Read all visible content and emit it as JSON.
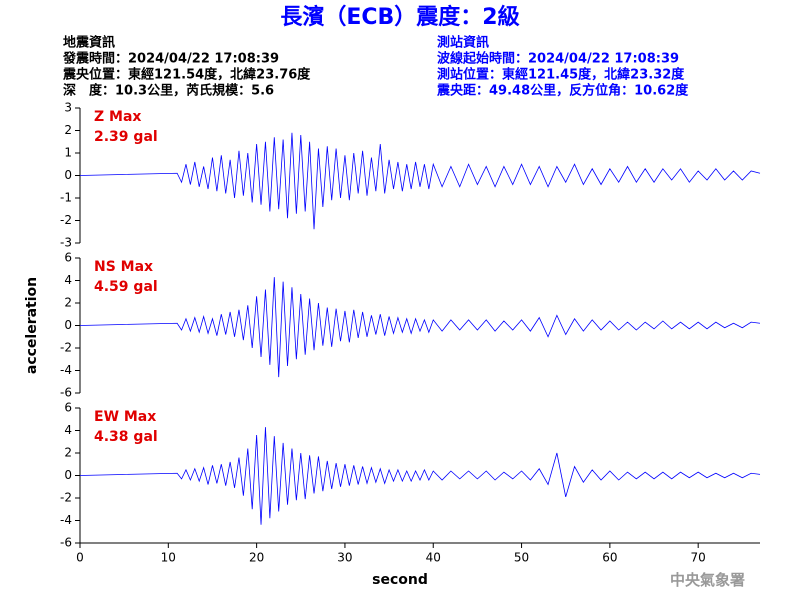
{
  "header": {
    "title": "長濱（ECB）震度：2級",
    "left": [
      "地震資訊",
      "發震時間：2024/04/22 17:08:39",
      "震央位置：東經121.54度，北緯23.76度",
      "深　度：10.3公里，芮氏規模：5.6"
    ],
    "right": [
      "測站資訊",
      "波線起始時間：2024/04/22 17:08:39",
      "測站位置：東經121.45度，北緯23.32度",
      "震央距：49.48公里，反方位角：10.62度"
    ]
  },
  "footer": {
    "agency": "中央氣象署"
  },
  "chart_data": [
    {
      "type": "line",
      "annotations": [
        "Z Max",
        "2.39 gal"
      ],
      "xlim": [
        0,
        77
      ],
      "ylim": [
        -3,
        3
      ],
      "yticks": [
        -3,
        -2,
        -1,
        0,
        1,
        2,
        3
      ],
      "x": [
        0,
        11,
        11.5,
        12,
        12.5,
        13,
        13.5,
        14,
        14.5,
        15,
        15.5,
        16,
        16.5,
        17,
        17.5,
        18,
        18.5,
        19,
        19.5,
        20,
        20.5,
        21,
        21.5,
        22,
        22.5,
        23,
        23.5,
        24,
        24.5,
        25,
        25.5,
        26,
        26.5,
        27,
        27.5,
        28,
        28.5,
        29,
        29.5,
        30,
        30.5,
        31,
        31.5,
        32,
        32.5,
        33,
        33.5,
        34,
        34.5,
        35,
        35.5,
        36,
        36.5,
        37,
        37.5,
        38,
        38.5,
        39,
        39.5,
        40,
        41,
        42,
        43,
        44,
        45,
        46,
        47,
        48,
        49,
        50,
        51,
        52,
        53,
        54,
        55,
        56,
        57,
        58,
        59,
        60,
        61,
        62,
        63,
        64,
        65,
        66,
        67,
        68,
        69,
        70,
        71,
        72,
        73,
        74,
        75,
        76,
        77
      ],
      "series": [
        {
          "color": "#0000ff",
          "values": [
            0,
            0.1,
            -0.3,
            0.5,
            -0.4,
            0.6,
            -0.5,
            0.4,
            -0.6,
            0.8,
            -0.7,
            0.9,
            -0.8,
            0.7,
            -1.0,
            1.1,
            -0.9,
            1.0,
            -1.2,
            1.4,
            -1.3,
            1.5,
            -1.6,
            1.7,
            -1.5,
            1.6,
            -1.9,
            1.9,
            -1.7,
            1.8,
            -1.6,
            1.5,
            -2.39,
            1.2,
            -1.4,
            1.3,
            -1.1,
            1.2,
            -1.0,
            0.9,
            -1.1,
            1.0,
            -0.8,
            1.1,
            -0.9,
            0.8,
            -0.7,
            1.4,
            -0.8,
            0.7,
            -0.6,
            0.6,
            -0.7,
            0.5,
            -0.6,
            0.6,
            -0.5,
            0.5,
            -0.6,
            0.5,
            -0.5,
            0.4,
            -0.5,
            0.5,
            -0.4,
            0.4,
            -0.5,
            0.4,
            -0.4,
            0.5,
            -0.4,
            0.4,
            -0.5,
            0.4,
            -0.3,
            0.5,
            -0.4,
            0.3,
            -0.4,
            0.3,
            -0.3,
            0.4,
            -0.3,
            0.3,
            -0.3,
            0.3,
            -0.2,
            0.3,
            -0.3,
            0.2,
            -0.2,
            0.3,
            -0.2,
            0.2,
            -0.2,
            0.2,
            0.1
          ]
        }
      ]
    },
    {
      "type": "line",
      "annotations": [
        "NS Max",
        "4.59 gal"
      ],
      "ylabel": "acceleration",
      "xlim": [
        0,
        77
      ],
      "ylim": [
        -6,
        6
      ],
      "yticks": [
        -6,
        -4,
        -2,
        0,
        2,
        4,
        6
      ],
      "x": [
        0,
        11,
        11.5,
        12,
        12.5,
        13,
        13.5,
        14,
        14.5,
        15,
        15.5,
        16,
        16.5,
        17,
        17.5,
        18,
        18.5,
        19,
        19.5,
        20,
        20.5,
        21,
        21.5,
        22,
        22.5,
        23,
        23.5,
        24,
        24.5,
        25,
        25.5,
        26,
        26.5,
        27,
        27.5,
        28,
        28.5,
        29,
        29.5,
        30,
        30.5,
        31,
        31.5,
        32,
        32.5,
        33,
        33.5,
        34,
        34.5,
        35,
        35.5,
        36,
        36.5,
        37,
        37.5,
        38,
        38.5,
        39,
        39.5,
        40,
        41,
        42,
        43,
        44,
        45,
        46,
        47,
        48,
        49,
        50,
        51,
        52,
        53,
        54,
        55,
        56,
        57,
        58,
        59,
        60,
        61,
        62,
        63,
        64,
        65,
        66,
        67,
        68,
        69,
        70,
        71,
        72,
        73,
        74,
        75,
        76,
        77
      ],
      "series": [
        {
          "color": "#0000ff",
          "values": [
            0,
            0.2,
            -0.4,
            0.6,
            -0.5,
            0.7,
            -0.6,
            0.8,
            -0.7,
            0.6,
            -0.9,
            1.0,
            -0.8,
            1.2,
            -1.0,
            1.4,
            -1.3,
            1.8,
            -2.0,
            2.6,
            -2.8,
            3.2,
            -3.5,
            4.3,
            -4.59,
            3.9,
            -3.6,
            3.4,
            -3.0,
            2.8,
            -2.6,
            2.4,
            -2.2,
            2.0,
            -1.8,
            1.6,
            -1.9,
            1.5,
            -1.4,
            1.3,
            -1.5,
            1.4,
            -1.1,
            1.2,
            -1.0,
            0.9,
            -0.8,
            1.0,
            -0.9,
            0.8,
            -0.7,
            0.7,
            -0.6,
            0.6,
            -0.7,
            0.6,
            -0.5,
            0.5,
            -0.6,
            0.5,
            -0.5,
            0.5,
            -0.4,
            0.5,
            -0.4,
            0.5,
            -0.5,
            0.4,
            -0.4,
            0.5,
            -0.5,
            0.7,
            -1.0,
            0.9,
            -0.8,
            0.6,
            -0.5,
            0.5,
            -0.4,
            0.4,
            -0.4,
            0.3,
            -0.4,
            0.3,
            -0.3,
            0.4,
            -0.3,
            0.3,
            -0.3,
            0.3,
            -0.3,
            0.3,
            -0.2,
            0.2,
            -0.2,
            0.3,
            0.2
          ]
        }
      ]
    },
    {
      "type": "line",
      "annotations": [
        "EW Max",
        "4.38 gal"
      ],
      "xlabel": "second",
      "xlim": [
        0,
        77
      ],
      "xticks": [
        0,
        10,
        20,
        30,
        40,
        50,
        60,
        70
      ],
      "ylim": [
        -6,
        6
      ],
      "yticks": [
        -6,
        -4,
        -2,
        0,
        2,
        4,
        6
      ],
      "x": [
        0,
        11,
        11.5,
        12,
        12.5,
        13,
        13.5,
        14,
        14.5,
        15,
        15.5,
        16,
        16.5,
        17,
        17.5,
        18,
        18.5,
        19,
        19.5,
        20,
        20.5,
        21,
        21.5,
        22,
        22.5,
        23,
        23.5,
        24,
        24.5,
        25,
        25.5,
        26,
        26.5,
        27,
        27.5,
        28,
        28.5,
        29,
        29.5,
        30,
        30.5,
        31,
        31.5,
        32,
        32.5,
        33,
        33.5,
        34,
        34.5,
        35,
        35.5,
        36,
        36.5,
        37,
        37.5,
        38,
        38.5,
        39,
        39.5,
        40,
        41,
        42,
        43,
        44,
        45,
        46,
        47,
        48,
        49,
        50,
        51,
        52,
        53,
        54,
        55,
        56,
        57,
        58,
        59,
        60,
        61,
        62,
        63,
        64,
        65,
        66,
        67,
        68,
        69,
        70,
        71,
        72,
        73,
        74,
        75,
        76,
        77
      ],
      "series": [
        {
          "color": "#0000ff",
          "values": [
            0,
            0.2,
            -0.3,
            0.5,
            -0.4,
            0.6,
            -0.5,
            0.7,
            -0.8,
            0.9,
            -0.7,
            1.0,
            -0.9,
            1.2,
            -1.1,
            1.6,
            -1.8,
            2.4,
            -3.0,
            3.6,
            -4.38,
            4.3,
            -3.8,
            3.5,
            -3.2,
            2.9,
            -2.6,
            2.4,
            -2.2,
            2.0,
            -2.1,
            1.8,
            -1.6,
            1.7,
            -1.4,
            1.3,
            -1.2,
            1.1,
            -1.0,
            1.0,
            -0.9,
            0.9,
            -0.8,
            0.8,
            -0.7,
            0.7,
            -0.6,
            0.6,
            -0.7,
            0.5,
            -0.5,
            0.5,
            -0.5,
            0.4,
            -0.5,
            0.4,
            -0.4,
            0.5,
            -0.4,
            0.4,
            -0.4,
            0.4,
            -0.3,
            0.4,
            -0.3,
            0.4,
            -0.4,
            0.3,
            -0.3,
            0.4,
            -0.4,
            0.6,
            -0.8,
            2.0,
            -1.9,
            0.8,
            -0.6,
            0.5,
            -0.4,
            0.4,
            -0.4,
            0.3,
            -0.3,
            0.3,
            -0.3,
            0.3,
            -0.3,
            0.3,
            -0.2,
            0.3,
            -0.2,
            0.2,
            -0.2,
            0.2,
            -0.2,
            0.2,
            0.1
          ]
        }
      ]
    }
  ]
}
